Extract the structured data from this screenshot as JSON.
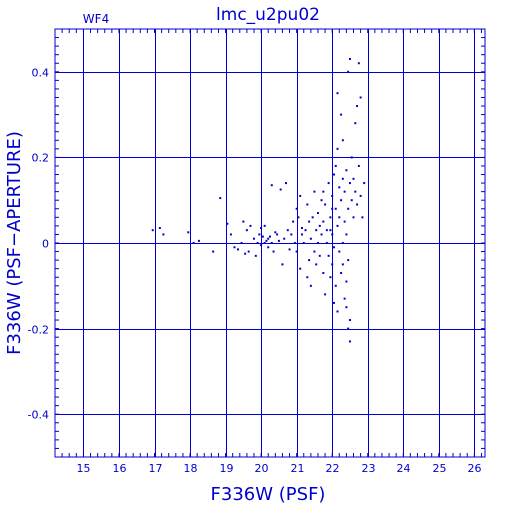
{
  "chart_data": {
    "type": "scatter",
    "title": "lmc_u2pu02",
    "panel_label": "WF4",
    "xlabel": "F336W (PSF)",
    "ylabel": "F336W (PSF−APERTURE)",
    "xlim": [
      14.2,
      26.3
    ],
    "ylim": [
      -0.5,
      0.5
    ],
    "x_ticks": [
      15,
      16,
      17,
      18,
      19,
      20,
      21,
      22,
      23,
      24,
      25,
      26
    ],
    "x_tick_labels": [
      "15",
      "16",
      "17",
      "18",
      "19",
      "20",
      "21",
      "22",
      "23",
      "24",
      "25",
      "26"
    ],
    "y_ticks": [
      -0.4,
      -0.2,
      0,
      0.2,
      0.4
    ],
    "y_tick_labels": [
      "-0.4",
      "-0.2",
      "0",
      "0.2",
      "0.4"
    ],
    "grid": true,
    "color": "#0000cc",
    "points": [
      [
        16.95,
        0.03
      ],
      [
        17.15,
        0.035
      ],
      [
        17.25,
        0.02
      ],
      [
        17.95,
        0.025
      ],
      [
        18.1,
        0.0
      ],
      [
        18.25,
        0.005
      ],
      [
        18.65,
        -0.02
      ],
      [
        18.85,
        0.105
      ],
      [
        19.05,
        0.045
      ],
      [
        19.15,
        0.02
      ],
      [
        19.25,
        -0.01
      ],
      [
        19.35,
        -0.015
      ],
      [
        19.45,
        0.0
      ],
      [
        19.5,
        0.05
      ],
      [
        19.55,
        -0.025
      ],
      [
        19.6,
        0.03
      ],
      [
        19.65,
        -0.02
      ],
      [
        19.7,
        0.04
      ],
      [
        19.8,
        0.01
      ],
      [
        19.85,
        -0.03
      ],
      [
        19.9,
        0.0
      ],
      [
        19.95,
        0.02
      ],
      [
        20.0,
        0.035
      ],
      [
        20.0,
        -0.005
      ],
      [
        20.05,
        0.015
      ],
      [
        20.1,
        0.0
      ],
      [
        20.1,
        0.04
      ],
      [
        20.15,
        0.005
      ],
      [
        20.2,
        -0.01
      ],
      [
        20.2,
        0.01
      ],
      [
        20.25,
        0.015
      ],
      [
        20.3,
        0.0
      ],
      [
        20.3,
        0.135
      ],
      [
        20.35,
        -0.02
      ],
      [
        20.4,
        0.025
      ],
      [
        20.45,
        0.02
      ],
      [
        20.5,
        0.005
      ],
      [
        20.55,
        0.125
      ],
      [
        20.6,
        -0.05
      ],
      [
        20.65,
        0.01
      ],
      [
        20.7,
        0.14
      ],
      [
        20.75,
        0.03
      ],
      [
        20.8,
        -0.015
      ],
      [
        20.85,
        0.02
      ],
      [
        20.9,
        0.05
      ],
      [
        20.95,
        0.0
      ],
      [
        21.0,
        0.08
      ],
      [
        21.0,
        -0.02
      ],
      [
        21.05,
        0.06
      ],
      [
        21.1,
        0.11
      ],
      [
        21.1,
        -0.06
      ],
      [
        21.15,
        0.035
      ],
      [
        21.15,
        0.02
      ],
      [
        21.2,
        0.0
      ],
      [
        21.25,
        0.03
      ],
      [
        21.3,
        -0.08
      ],
      [
        21.3,
        0.09
      ],
      [
        21.35,
        0.05
      ],
      [
        21.35,
        -0.04
      ],
      [
        21.4,
        0.01
      ],
      [
        21.4,
        -0.1
      ],
      [
        21.45,
        0.06
      ],
      [
        21.5,
        -0.02
      ],
      [
        21.5,
        0.12
      ],
      [
        21.55,
        0.03
      ],
      [
        21.55,
        -0.05
      ],
      [
        21.6,
        0.07
      ],
      [
        21.6,
        0.0
      ],
      [
        21.65,
        0.04
      ],
      [
        21.65,
        -0.03
      ],
      [
        21.7,
        0.1
      ],
      [
        21.7,
        0.02
      ],
      [
        21.75,
        -0.07
      ],
      [
        21.75,
        0.05
      ],
      [
        21.8,
        0.09
      ],
      [
        21.8,
        -0.12
      ],
      [
        21.85,
        0.0
      ],
      [
        21.85,
        0.03
      ],
      [
        21.9,
        -0.03
      ],
      [
        21.9,
        0.14
      ],
      [
        21.95,
        0.06
      ],
      [
        21.95,
        -0.08
      ],
      [
        22.0,
        0.11
      ],
      [
        22.0,
        0.02
      ],
      [
        22.0,
        -0.05
      ],
      [
        22.05,
        0.16
      ],
      [
        22.05,
        -0.01
      ],
      [
        22.1,
        0.08
      ],
      [
        22.1,
        0.18
      ],
      [
        22.1,
        -0.1
      ],
      [
        22.15,
        0.04
      ],
      [
        22.15,
        0.35
      ],
      [
        22.15,
        0.22
      ],
      [
        22.2,
        0.13
      ],
      [
        22.2,
        -0.02
      ],
      [
        22.2,
        0.06
      ],
      [
        22.25,
        0.3
      ],
      [
        22.25,
        0.1
      ],
      [
        22.25,
        -0.07
      ],
      [
        22.3,
        0.15
      ],
      [
        22.3,
        0.0
      ],
      [
        22.3,
        0.24
      ],
      [
        22.35,
        0.12
      ],
      [
        22.35,
        -0.13
      ],
      [
        22.35,
        0.05
      ],
      [
        22.4,
        0.17
      ],
      [
        22.4,
        0.02
      ],
      [
        22.4,
        -0.15
      ],
      [
        22.45,
        0.4
      ],
      [
        22.45,
        0.08
      ],
      [
        22.45,
        -0.04
      ],
      [
        22.5,
        0.43
      ],
      [
        22.5,
        0.14
      ],
      [
        22.5,
        -0.18
      ],
      [
        22.5,
        -0.23
      ],
      [
        22.55,
        0.1
      ],
      [
        22.55,
        0.2
      ],
      [
        22.6,
        0.06
      ],
      [
        22.6,
        0.15
      ],
      [
        22.65,
        0.12
      ],
      [
        22.65,
        0.28
      ],
      [
        22.7,
        0.32
      ],
      [
        22.7,
        0.09
      ],
      [
        22.75,
        0.42
      ],
      [
        22.75,
        0.18
      ],
      [
        22.8,
        0.34
      ],
      [
        22.8,
        0.11
      ],
      [
        22.85,
        0.06
      ],
      [
        22.9,
        0.14
      ],
      [
        22.0,
        0.08
      ],
      [
        21.95,
        0.03
      ],
      [
        22.05,
        -0.14
      ],
      [
        22.4,
        -0.09
      ],
      [
        22.3,
        -0.05
      ],
      [
        22.15,
        -0.16
      ],
      [
        22.45,
        -0.2
      ],
      [
        21.75,
        0.12
      ]
    ]
  }
}
